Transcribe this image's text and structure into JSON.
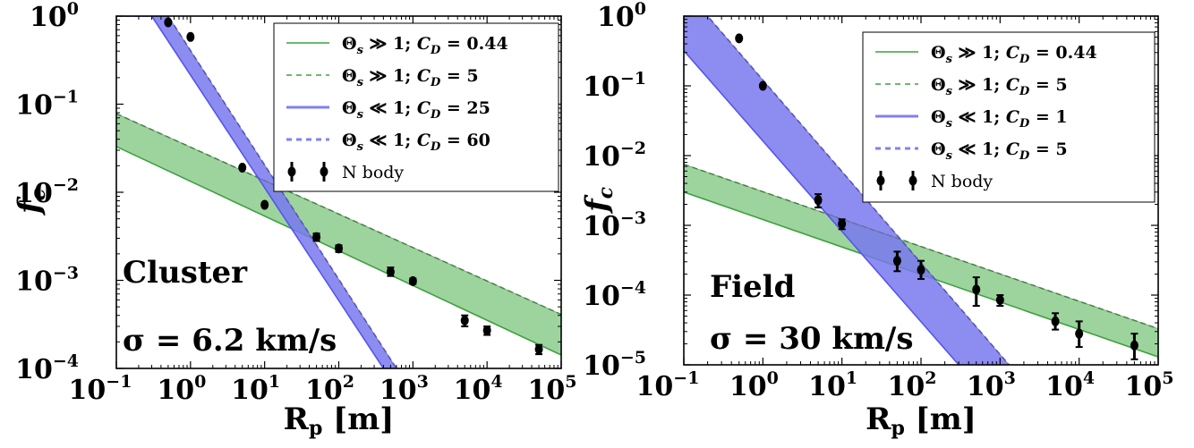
{
  "chart_data": [
    {
      "type": "scatter",
      "xlabel": "R_p [m]",
      "ylabel": "f_c",
      "xscale": "log",
      "yscale": "log",
      "xlim": [
        0.1,
        100000
      ],
      "ylim": [
        0.0001,
        1
      ],
      "x_ticks": [
        {
          "base": "10",
          "exp": "−1"
        },
        {
          "base": "10",
          "exp": "0"
        },
        {
          "base": "10",
          "exp": "1"
        },
        {
          "base": "10",
          "exp": "2"
        },
        {
          "base": "10",
          "exp": "3"
        },
        {
          "base": "10",
          "exp": "4"
        },
        {
          "base": "10",
          "exp": "5"
        }
      ],
      "y_ticks": [
        {
          "base": "10",
          "exp": "−4"
        },
        {
          "base": "10",
          "exp": "−3"
        },
        {
          "base": "10",
          "exp": "−2"
        },
        {
          "base": "10",
          "exp": "−1"
        },
        {
          "base": "10",
          "exp": "0"
        }
      ],
      "x_tick_values": [
        0.1,
        1,
        10,
        100,
        1000,
        10000,
        100000
      ],
      "y_tick_values": [
        0.0001,
        0.001,
        0.01,
        0.1,
        1
      ],
      "annotation_title": "Cluster",
      "annotation_sigma": "σ = 6.2 km/s",
      "legend_position": "upper right",
      "bands": [
        {
          "regime": "Θs ≫ 1",
          "color": "#3ea03e",
          "fill": "#8ccc8c",
          "cap": 1,
          "lower": {
            "cd_label": "Θs ≫ 1; CD = 0.44",
            "style": "solid",
            "x": [
              0.1,
              100000
            ],
            "y": [
              0.033,
              0.000142
            ]
          },
          "upper": {
            "cd_label": "Θs ≫ 1; CD = 5",
            "style": "dashed",
            "x": [
              0.1,
              100000
            ],
            "y": [
              0.078,
              0.00041
            ]
          }
        },
        {
          "regime": "Θs ≪ 1",
          "color": "#5555ee",
          "fill": "#7878ee",
          "cap": 1,
          "lower": {
            "cd_label": "Θs ≪ 1; CD = 25",
            "style": "solid",
            "x": [
              0.1,
              0.3,
              400
            ],
            "y": [
              1,
              1,
              0.0001
            ]
          },
          "upper": {
            "cd_label": "Θs ≪ 1; CD = 60",
            "style": "dashed",
            "x": [
              0.1,
              0.5,
              600
            ],
            "y": [
              1,
              1,
              0.0001
            ]
          }
        }
      ],
      "legend": [
        {
          "label_pre": "Θ",
          "label_sub": "s",
          "label_rel": " ≫ 1; ",
          "label_c": "C",
          "label_csub": "D",
          "label_val": " = 0.44",
          "style": "solid",
          "color": "#3ea03e"
        },
        {
          "label_pre": "Θ",
          "label_sub": "s",
          "label_rel": " ≫ 1; ",
          "label_c": "C",
          "label_csub": "D",
          "label_val": " = 5",
          "style": "dashed",
          "color": "#3ea03e"
        },
        {
          "label_pre": "Θ",
          "label_sub": "s",
          "label_rel": " ≪ 1; ",
          "label_c": "C",
          "label_csub": "D",
          "label_val": " = 25",
          "style": "solid",
          "color": "#5555ee"
        },
        {
          "label_pre": "Θ",
          "label_sub": "s",
          "label_rel": " ≪ 1; ",
          "label_c": "C",
          "label_csub": "D",
          "label_val": " = 60",
          "style": "dashed",
          "color": "#5555ee"
        },
        {
          "label_pre": "N body",
          "style": "errorbar",
          "color": "#000000"
        }
      ],
      "points": {
        "name": "N body",
        "x": [
          0.5,
          1,
          5,
          10,
          50,
          100,
          500,
          1000,
          5000,
          10000,
          50000
        ],
        "y": [
          0.85,
          0.58,
          0.019,
          0.0072,
          0.0031,
          0.0023,
          0.00125,
          0.00098,
          0.00035,
          0.00027,
          0.000165
        ],
        "err_lo": [
          0.82,
          0.56,
          0.0185,
          0.0069,
          0.0028,
          0.0021,
          0.00112,
          0.00091,
          0.0003,
          0.00024,
          0.000145
        ],
        "err_hi": [
          0.88,
          0.6,
          0.0195,
          0.0075,
          0.0034,
          0.0025,
          0.0014,
          0.00105,
          0.0004,
          0.0003,
          0.000185
        ]
      }
    },
    {
      "type": "scatter",
      "xlabel": "R_p [m]",
      "ylabel": "f_c",
      "xscale": "log",
      "yscale": "log",
      "xlim": [
        0.1,
        100000
      ],
      "ylim": [
        1e-05,
        1
      ],
      "x_ticks": [
        {
          "base": "10",
          "exp": "−1"
        },
        {
          "base": "10",
          "exp": "0"
        },
        {
          "base": "10",
          "exp": "1"
        },
        {
          "base": "10",
          "exp": "2"
        },
        {
          "base": "10",
          "exp": "3"
        },
        {
          "base": "10",
          "exp": "4"
        },
        {
          "base": "10",
          "exp": "5"
        }
      ],
      "y_ticks": [
        {
          "base": "10",
          "exp": "−5"
        },
        {
          "base": "10",
          "exp": "−4"
        },
        {
          "base": "10",
          "exp": "−3"
        },
        {
          "base": "10",
          "exp": "−2"
        },
        {
          "base": "10",
          "exp": "−1"
        },
        {
          "base": "10",
          "exp": "0"
        }
      ],
      "x_tick_values": [
        0.1,
        1,
        10,
        100,
        1000,
        10000,
        100000
      ],
      "y_tick_values": [
        1e-05,
        0.0001,
        0.001,
        0.01,
        0.1,
        1
      ],
      "annotation_title": "Field",
      "annotation_sigma": "σ = 30 km/s",
      "legend_position": "upper right",
      "bands": [
        {
          "regime": "Θs ≫ 1",
          "color": "#3ea03e",
          "fill": "#8ccc8c",
          "cap": 1,
          "lower": {
            "cd_label": "Θs ≫ 1; CD = 0.44",
            "style": "solid",
            "x": [
              0.1,
              100000
            ],
            "y": [
              0.003,
              1.3e-05
            ]
          },
          "upper": {
            "cd_label": "Θs ≫ 1; CD = 5",
            "style": "dashed",
            "x": [
              0.1,
              100000
            ],
            "y": [
              0.0075,
              3.3e-05
            ]
          }
        },
        {
          "regime": "Θs ≪ 1",
          "color": "#5555ee",
          "fill": "#7878ee",
          "cap": 1,
          "lower": {
            "cd_label": "Θs ≪ 1; CD = 1",
            "style": "solid",
            "x": [
              0.1,
              300
            ],
            "y": [
              0.32,
              1e-05
            ]
          },
          "upper": {
            "cd_label": "Θs ≪ 1; CD = 5",
            "style": "dashed",
            "x": [
              0.1,
              0.2,
              1300
            ],
            "y": [
              1,
              1,
              1e-05
            ]
          }
        }
      ],
      "legend": [
        {
          "label_pre": "Θ",
          "label_sub": "s",
          "label_rel": " ≫ 1; ",
          "label_c": "C",
          "label_csub": "D",
          "label_val": " = 0.44",
          "style": "solid",
          "color": "#3ea03e"
        },
        {
          "label_pre": "Θ",
          "label_sub": "s",
          "label_rel": " ≫ 1; ",
          "label_c": "C",
          "label_csub": "D",
          "label_val": " = 5",
          "style": "dashed",
          "color": "#3ea03e"
        },
        {
          "label_pre": "Θ",
          "label_sub": "s",
          "label_rel": " ≪ 1; ",
          "label_c": "C",
          "label_csub": "D",
          "label_val": " = 1",
          "style": "solid",
          "color": "#5555ee"
        },
        {
          "label_pre": "Θ",
          "label_sub": "s",
          "label_rel": " ≪ 1; ",
          "label_c": "C",
          "label_csub": "D",
          "label_val": " = 5",
          "style": "dashed",
          "color": "#5555ee"
        },
        {
          "label_pre": "N body",
          "style": "errorbar",
          "color": "#000000"
        }
      ],
      "points": {
        "name": "N body",
        "x": [
          0.5,
          1,
          5,
          10,
          50,
          100,
          500,
          1000,
          5000,
          10000,
          50000
        ],
        "y": [
          0.48,
          0.1,
          0.0023,
          0.00105,
          0.00031,
          0.00023,
          0.00012,
          8.5e-05,
          4.2e-05,
          2.8e-05,
          1.9e-05
        ],
        "err_lo": [
          0.46,
          0.096,
          0.0018,
          0.00088,
          0.00022,
          0.00017,
          7e-05,
          7e-05,
          3.2e-05,
          1.8e-05,
          1.2e-05
        ],
        "err_hi": [
          0.5,
          0.104,
          0.0028,
          0.00122,
          0.00042,
          0.00031,
          0.00018,
          0.0001,
          5.5e-05,
          4.2e-05,
          2.8e-05
        ]
      }
    }
  ]
}
